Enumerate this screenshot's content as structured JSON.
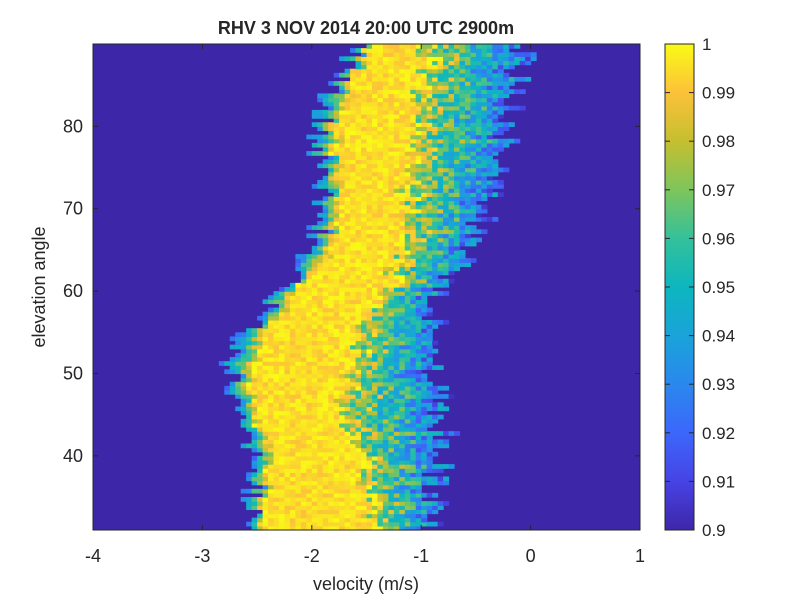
{
  "chart_data": {
    "type": "heatmap",
    "title": "RHV 3 NOV 2014 20:00 UTC 2900m",
    "xlabel": "velocity (m/s)",
    "ylabel": "elevation angle",
    "xlim": [
      -4,
      1
    ],
    "ylim": [
      31,
      90
    ],
    "x_ticks": [
      -4,
      -3,
      -2,
      -1,
      0,
      1
    ],
    "y_ticks": [
      40,
      50,
      60,
      70,
      80
    ],
    "colorbar": {
      "colormap": "parula",
      "clim": [
        0.9,
        1.0
      ],
      "ticks": [
        "0.9",
        "0.91",
        "0.92",
        "0.93",
        "0.94",
        "0.95",
        "0.96",
        "0.97",
        "0.98",
        "0.99",
        "1"
      ]
    },
    "background_value": 0.9,
    "band_profile": {
      "description_of_fields": "approximate extents (m/s) of the high-correlation region per elevation angle",
      "elevation": [
        31,
        35,
        40,
        45,
        50,
        55,
        60,
        65,
        70,
        75,
        80,
        85,
        90
      ],
      "outer_left": [
        -2.6,
        -2.55,
        -2.5,
        -2.7,
        -2.75,
        -2.6,
        -2.3,
        -2.0,
        -1.9,
        -1.95,
        -1.95,
        -1.8,
        -1.55
      ],
      "outer_right": [
        -0.95,
        -0.9,
        -0.8,
        -0.8,
        -0.9,
        -0.9,
        -0.85,
        -0.6,
        -0.4,
        -0.3,
        -0.2,
        -0.1,
        -0.1
      ],
      "yellow_left": [
        -2.45,
        -2.4,
        -2.35,
        -2.5,
        -2.55,
        -2.4,
        -2.1,
        -1.8,
        -1.75,
        -1.75,
        -1.75,
        -1.6,
        -1.45
      ],
      "yellow_right": [
        -1.45,
        -1.5,
        -1.6,
        -1.7,
        -1.7,
        -1.55,
        -1.3,
        -1.2,
        -1.15,
        -1.1,
        -1.05,
        -1.0,
        -1.0
      ]
    },
    "colors": {
      "background": "#3e26a8",
      "axis": "#262626"
    }
  }
}
